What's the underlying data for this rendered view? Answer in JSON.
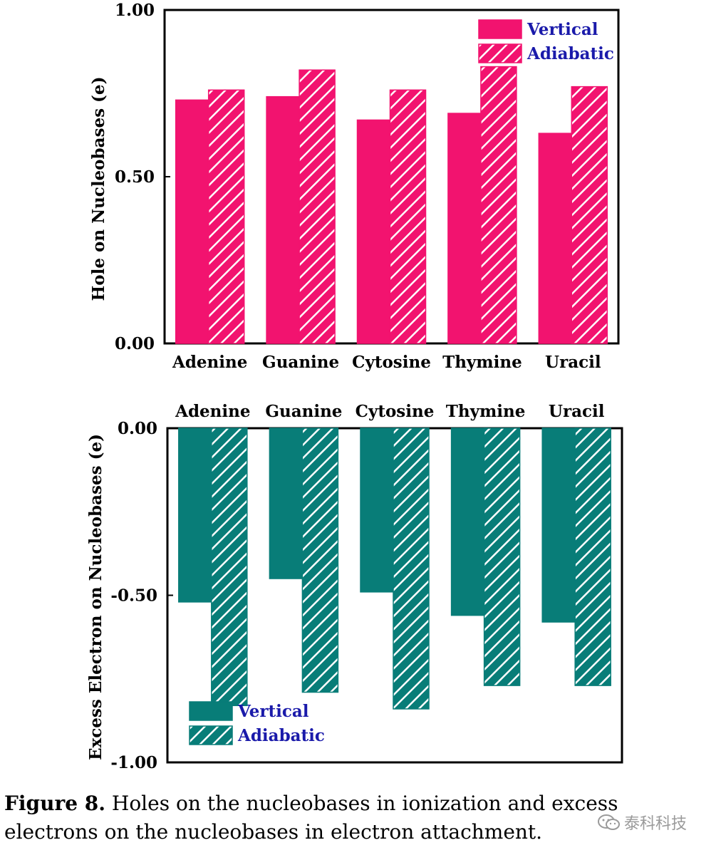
{
  "colors": {
    "top": "#f2136f",
    "bottom": "#087d78",
    "legend_text": "#1a1aaa"
  },
  "caption": {
    "lead": "Figure 8.",
    "text": " Holes on the nucleobases in ionization and excess electrons on the nucleobases in electron attachment."
  },
  "watermark": {
    "text": "泰科科技",
    "icon": "wechat-icon"
  },
  "chart_data": [
    {
      "type": "bar",
      "categories": [
        "Adenine",
        "Guanine",
        "Cytosine",
        "Thymine",
        "Uracil"
      ],
      "series": [
        {
          "name": "Vertical",
          "values": [
            0.73,
            0.74,
            0.67,
            0.69,
            0.63
          ]
        },
        {
          "name": "Adiabatic",
          "values": [
            0.76,
            0.82,
            0.76,
            0.83,
            0.77
          ]
        }
      ],
      "ylabel": "Hole on Nucleobases (e)",
      "ylim": [
        0,
        1.0
      ],
      "yticks": [
        "0.00",
        "0.50",
        "1.00"
      ],
      "legend": "top-right"
    },
    {
      "type": "bar",
      "categories": [
        "Adenine",
        "Guanine",
        "Cytosine",
        "Thymine",
        "Uracil"
      ],
      "series": [
        {
          "name": "Vertical",
          "values": [
            -0.52,
            -0.45,
            -0.49,
            -0.56,
            -0.58
          ]
        },
        {
          "name": "Adiabatic",
          "values": [
            -0.83,
            -0.79,
            -0.84,
            -0.77,
            -0.77
          ]
        }
      ],
      "ylabel": "Excess Electron on Nucleobases (e)",
      "ylim": [
        -1.0,
        0
      ],
      "yticks": [
        "0.00",
        "-0.50",
        "-1.00"
      ],
      "legend": "bottom-left"
    }
  ]
}
